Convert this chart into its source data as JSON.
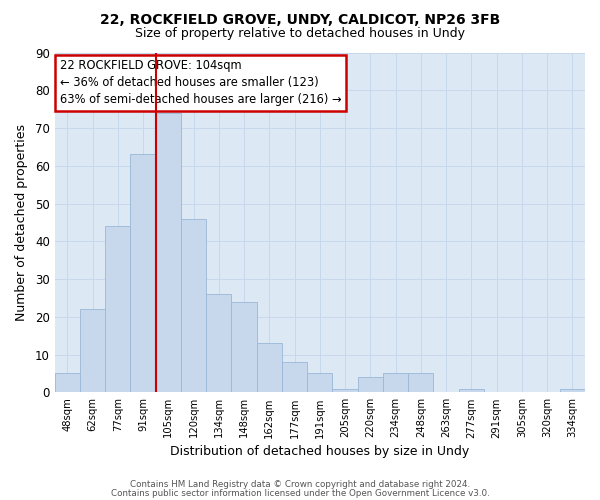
{
  "title1": "22, ROCKFIELD GROVE, UNDY, CALDICOT, NP26 3FB",
  "title2": "Size of property relative to detached houses in Undy",
  "xlabel": "Distribution of detached houses by size in Undy",
  "ylabel": "Number of detached properties",
  "bar_labels": [
    "48sqm",
    "62sqm",
    "77sqm",
    "91sqm",
    "105sqm",
    "120sqm",
    "134sqm",
    "148sqm",
    "162sqm",
    "177sqm",
    "191sqm",
    "205sqm",
    "220sqm",
    "234sqm",
    "248sqm",
    "263sqm",
    "277sqm",
    "291sqm",
    "305sqm",
    "320sqm",
    "334sqm"
  ],
  "bar_heights": [
    5,
    22,
    44,
    63,
    74,
    46,
    26,
    24,
    13,
    8,
    5,
    1,
    4,
    5,
    5,
    0,
    1,
    0,
    0,
    0,
    1
  ],
  "bar_color": "#c8d8ec",
  "bar_edge_color": "#9ab8d8",
  "vline_color": "#cc0000",
  "ylim": [
    0,
    90
  ],
  "yticks": [
    0,
    10,
    20,
    30,
    40,
    50,
    60,
    70,
    80,
    90
  ],
  "annotation_line1": "22 ROCKFIELD GROVE: 104sqm",
  "annotation_line2": "← 36% of detached houses are smaller (123)",
  "annotation_line3": "63% of semi-detached houses are larger (216) →",
  "annotation_box_color": "#ffffff",
  "annotation_box_edge": "#cc0000",
  "grid_color": "#c8d8ec",
  "plot_bg_color": "#dce8f4",
  "fig_bg_color": "#ffffff",
  "footer1": "Contains HM Land Registry data © Crown copyright and database right 2024.",
  "footer2": "Contains public sector information licensed under the Open Government Licence v3.0."
}
